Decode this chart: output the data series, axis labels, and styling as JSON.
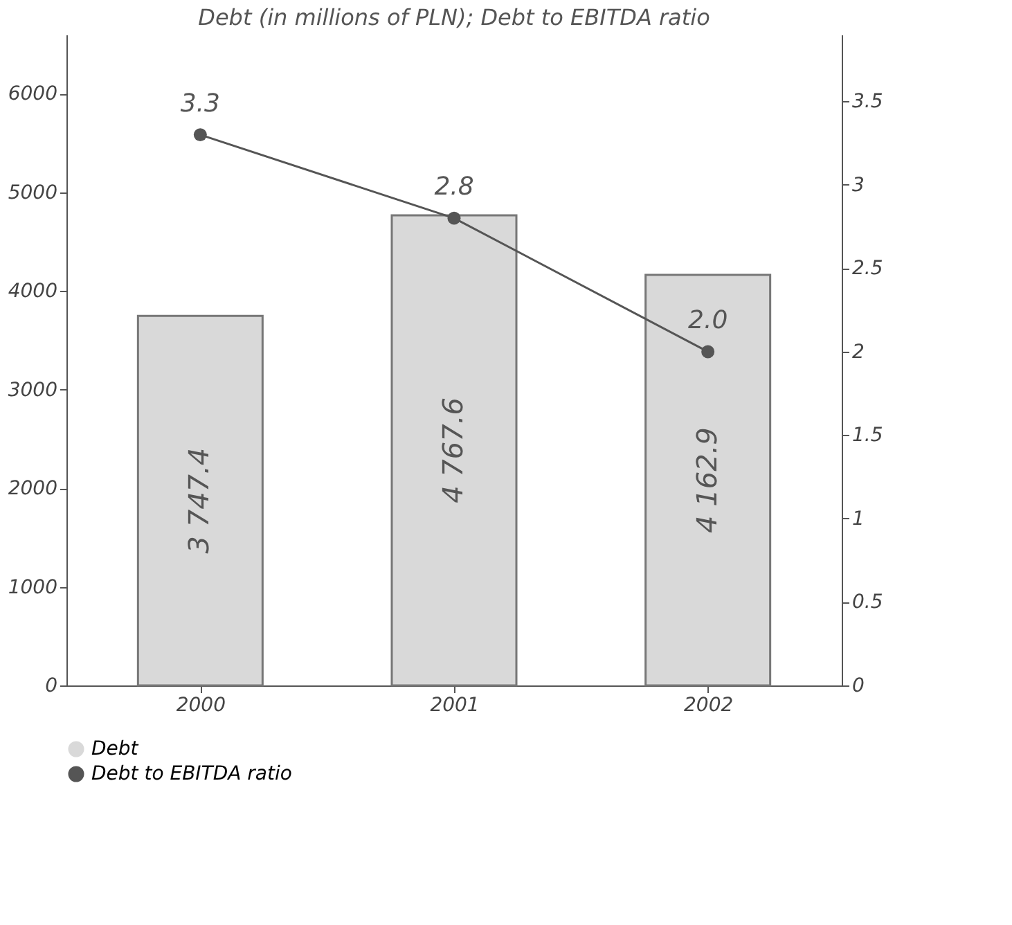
{
  "chart_data": {
    "type": "bar",
    "title": "Debt (in millions of PLN); Debt to EBITDA ratio",
    "categories": [
      "2000",
      "2001",
      "2002"
    ],
    "series": [
      {
        "name": "Debt",
        "color": "#d9d9d9",
        "values": [
          3747.4,
          4767.6,
          4162.9
        ],
        "value_labels": [
          "3 747.4",
          "4 767.6",
          "4 162.9"
        ]
      },
      {
        "name": "Debt to EBITDA ratio",
        "type": "line",
        "axis": "y2",
        "color": "#555555",
        "values": [
          3.3,
          2.8,
          2.0
        ],
        "value_labels": [
          "3.3",
          "2.8",
          "2.0"
        ]
      }
    ],
    "ylim": [
      0,
      6600
    ],
    "yticks": [
      0,
      1000,
      2000,
      3000,
      4000,
      5000,
      6000
    ],
    "y2lim": [
      0,
      3.9
    ],
    "y2ticks": [
      0,
      0.5,
      1,
      1.5,
      2,
      2.5,
      3,
      3.5
    ],
    "marker": "circle",
    "line_style": "solid",
    "legend": "bottom",
    "grid": false
  }
}
